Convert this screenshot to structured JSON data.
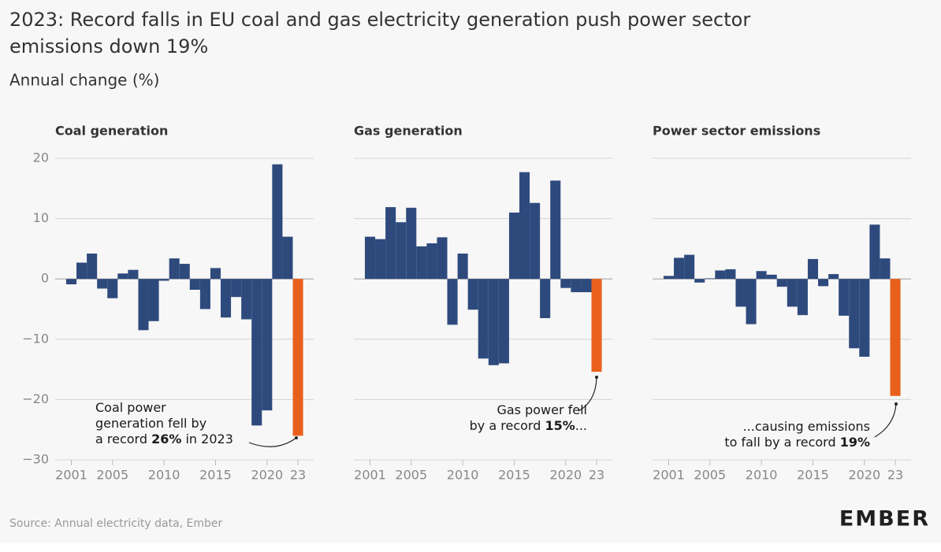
{
  "title_lines": [
    "2023: Record falls in EU coal and gas electricity generation push power sector",
    "emissions down 19%"
  ],
  "subtitle": "Annual change (%)",
  "source": "Source: Annual electricity data, Ember",
  "logo": "EMBER",
  "chart_data": [
    {
      "type": "bar",
      "title": "Coal generation",
      "color": "#2e4a7d",
      "highlight_color": "#e8601c",
      "categories": [
        "2001",
        null,
        null,
        null,
        "2005",
        null,
        null,
        null,
        null,
        "2010",
        null,
        null,
        null,
        null,
        "2015",
        null,
        null,
        null,
        null,
        "2020",
        null,
        null,
        "23"
      ],
      "values": [
        -0.9,
        2.7,
        4.2,
        -1.6,
        -3.2,
        0.9,
        1.5,
        -8.5,
        -7,
        -0.3,
        3.4,
        2.5,
        -1.8,
        -5,
        1.8,
        -6.4,
        -3,
        -6.7,
        -24.3,
        -21.8,
        19,
        7,
        -26
      ],
      "ylim": [
        -30,
        20
      ],
      "yticks": [
        {
          "value": -30,
          "label": "−30"
        },
        {
          "value": -20,
          "label": "−20"
        },
        {
          "value": -10,
          "label": "−10"
        },
        0,
        10,
        20
      ],
      "annotation": [
        [
          "Coal power"
        ],
        [
          "generation fell by"
        ],
        [
          "a record ",
          "26%",
          " in 2023"
        ]
      ]
    },
    {
      "type": "bar",
      "title": "Gas generation",
      "color": "#2e4a7d",
      "highlight_color": "#e8601c",
      "categories": [
        "2001",
        null,
        null,
        null,
        "2005",
        null,
        null,
        null,
        null,
        "2010",
        null,
        null,
        null,
        null,
        "2015",
        null,
        null,
        null,
        null,
        "2020",
        null,
        null,
        "23"
      ],
      "values": [
        7,
        6.6,
        11.9,
        9.4,
        11.8,
        5.4,
        5.9,
        6.9,
        -7.6,
        4.2,
        -5.1,
        -13.2,
        -14.3,
        -14,
        11,
        17.7,
        12.6,
        -6.5,
        16.3,
        -1.5,
        -2.2,
        -2.2,
        -15.4
      ],
      "ylim": [
        -30,
        20
      ],
      "yticks": [
        -30,
        -20,
        -10,
        0,
        10,
        20
      ],
      "annotation": [
        [
          "Gas power fell"
        ],
        [
          "by a record ",
          "15%",
          "..."
        ]
      ]
    },
    {
      "type": "bar",
      "title": "Power sector emissions",
      "color": "#2e4a7d",
      "highlight_color": "#e8601c",
      "categories": [
        "2001",
        null,
        null,
        null,
        "2005",
        null,
        null,
        null,
        null,
        "2010",
        null,
        null,
        null,
        null,
        "2015",
        null,
        null,
        null,
        null,
        "2020",
        null,
        null,
        "23"
      ],
      "values": [
        0.5,
        3.5,
        4,
        -0.6,
        0.1,
        1.4,
        1.6,
        -4.6,
        -7.5,
        1.3,
        0.7,
        -1.3,
        -4.6,
        -6,
        3.3,
        -1.2,
        0.8,
        -6.1,
        -11.5,
        -12.9,
        9,
        3.4,
        -19.4
      ],
      "ylim": [
        -30,
        20
      ],
      "yticks": [
        -30,
        -20,
        -10,
        0,
        10,
        20
      ],
      "annotation": [
        [
          "...causing emissions"
        ],
        [
          "to fall by a record ",
          "19%"
        ]
      ]
    }
  ]
}
